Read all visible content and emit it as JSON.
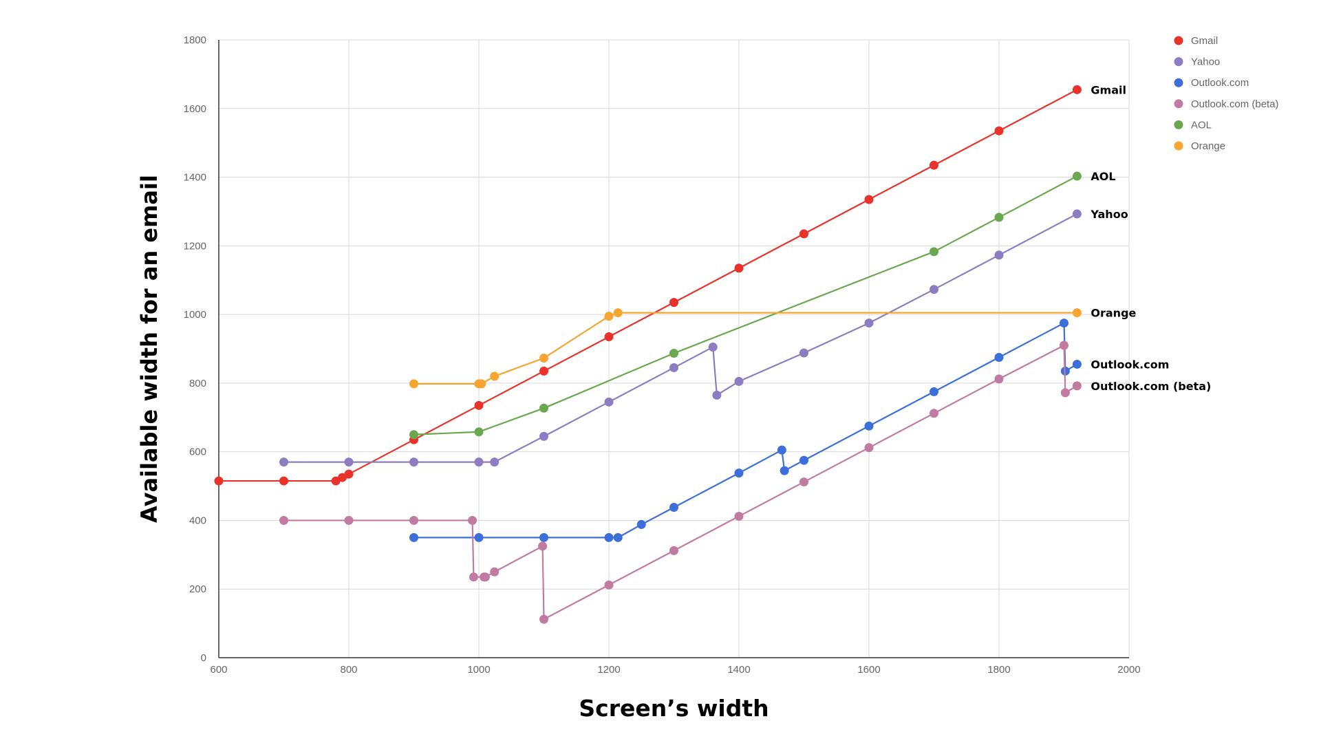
{
  "chart_data": {
    "type": "line",
    "title": "",
    "xlabel": "Screen’s width",
    "ylabel": "Available width for an email",
    "xlim": [
      600,
      2000
    ],
    "ylim": [
      0,
      1800
    ],
    "x_ticks": [
      600,
      800,
      1000,
      1200,
      1400,
      1600,
      1800,
      2000
    ],
    "y_ticks": [
      0,
      200,
      400,
      600,
      800,
      1000,
      1200,
      1400,
      1600,
      1800
    ],
    "grid": true,
    "legend_position": "right",
    "series": [
      {
        "name": "Gmail",
        "end_label": "Gmail",
        "color": "#e8322a",
        "points": [
          [
            600,
            515
          ],
          [
            700,
            515
          ],
          [
            780,
            515
          ],
          [
            790,
            525
          ],
          [
            800,
            535
          ],
          [
            900,
            635
          ],
          [
            1000,
            735
          ],
          [
            1100,
            835
          ],
          [
            1200,
            935
          ],
          [
            1300,
            1035
          ],
          [
            1400,
            1135
          ],
          [
            1500,
            1235
          ],
          [
            1600,
            1335
          ],
          [
            1700,
            1435
          ],
          [
            1800,
            1535
          ],
          [
            1920,
            1655
          ]
        ]
      },
      {
        "name": "Yahoo",
        "end_label": "Yahoo",
        "color": "#8e7cc3",
        "points": [
          [
            700,
            570
          ],
          [
            800,
            570
          ],
          [
            900,
            570
          ],
          [
            1000,
            570
          ],
          [
            1024,
            570
          ],
          [
            1100,
            645
          ],
          [
            1200,
            745
          ],
          [
            1300,
            845
          ],
          [
            1360,
            905
          ],
          [
            1366,
            765
          ],
          [
            1400,
            805
          ],
          [
            1500,
            888
          ],
          [
            1600,
            975
          ],
          [
            1700,
            1073
          ],
          [
            1800,
            1173
          ],
          [
            1920,
            1293
          ]
        ]
      },
      {
        "name": "Outlook.com",
        "end_label": "Outlook.com",
        "color": "#3c6fd9",
        "points": [
          [
            900,
            350
          ],
          [
            1000,
            350
          ],
          [
            1100,
            350
          ],
          [
            1200,
            350
          ],
          [
            1214,
            350
          ],
          [
            1250,
            388
          ],
          [
            1300,
            438
          ],
          [
            1400,
            538
          ],
          [
            1466,
            605
          ],
          [
            1470,
            545
          ],
          [
            1500,
            575
          ],
          [
            1600,
            675
          ],
          [
            1700,
            775
          ],
          [
            1800,
            875
          ],
          [
            1900,
            975
          ],
          [
            1902,
            835
          ],
          [
            1920,
            855
          ]
        ]
      },
      {
        "name": "Outlook.com (beta)",
        "end_label": "Outlook.com (beta)",
        "color": "#c27ba0",
        "points": [
          [
            700,
            400
          ],
          [
            800,
            400
          ],
          [
            900,
            400
          ],
          [
            990,
            400
          ],
          [
            992,
            235
          ],
          [
            1008,
            235
          ],
          [
            1010,
            235
          ],
          [
            1024,
            250
          ],
          [
            1098,
            325
          ],
          [
            1100,
            112
          ],
          [
            1200,
            212
          ],
          [
            1300,
            312
          ],
          [
            1400,
            412
          ],
          [
            1500,
            512
          ],
          [
            1600,
            612
          ],
          [
            1700,
            712
          ],
          [
            1800,
            812
          ],
          [
            1900,
            910
          ],
          [
            1902,
            772
          ],
          [
            1920,
            792
          ]
        ]
      },
      {
        "name": "AOL",
        "end_label": "AOL",
        "color": "#6aa84f",
        "points": [
          [
            900,
            650
          ],
          [
            1000,
            658
          ],
          [
            1100,
            727
          ],
          [
            1300,
            887
          ],
          [
            1700,
            1183
          ],
          [
            1800,
            1283
          ],
          [
            1920,
            1403
          ]
        ]
      },
      {
        "name": "Orange",
        "end_label": "Orange",
        "color": "#f6a531",
        "points": [
          [
            900,
            798
          ],
          [
            1000,
            798
          ],
          [
            1004,
            798
          ],
          [
            1024,
            820
          ],
          [
            1100,
            873
          ],
          [
            1200,
            995
          ],
          [
            1214,
            1005
          ],
          [
            1920,
            1005
          ]
        ]
      }
    ]
  }
}
